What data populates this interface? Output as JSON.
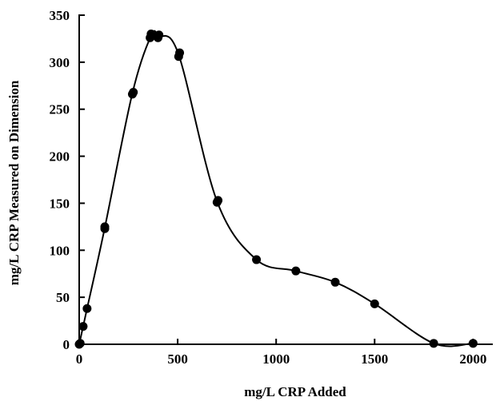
{
  "chart_data": {
    "type": "scatter",
    "title": "",
    "xlabel": "mg/L CRP Added",
    "ylabel": "mg/L CRP Measured on Dimension",
    "xlim": [
      0,
      2000
    ],
    "ylim": [
      0,
      350
    ],
    "x_ticks": [
      "0",
      "500",
      "1000",
      "1500",
      "2000"
    ],
    "y_ticks": [
      "0",
      "50",
      "100",
      "150",
      "200",
      "250",
      "300",
      "350"
    ],
    "grid": false,
    "legend": "none",
    "smooth_line": true,
    "marker_color": "#000000",
    "series": [
      {
        "x": [
          0,
          5,
          20,
          40,
          130,
          130,
          270,
          275,
          360,
          365,
          400,
          405,
          505,
          510,
          700,
          705,
          900,
          1100,
          1300,
          1500,
          1800,
          2000
        ],
        "y": [
          0,
          1,
          19,
          38,
          123,
          125,
          266,
          268,
          326,
          330,
          326,
          329,
          306,
          310,
          151,
          153,
          90,
          78,
          66,
          43,
          1,
          1
        ]
      }
    ],
    "curve": {
      "x": [
        0,
        20,
        40,
        130,
        270,
        365,
        405,
        505,
        700,
        900,
        1100,
        1300,
        1500,
        1800,
        2000
      ],
      "y": [
        0,
        19,
        38,
        124,
        267,
        328,
        328,
        308,
        152,
        90,
        78,
        66,
        43,
        1,
        1
      ]
    }
  }
}
